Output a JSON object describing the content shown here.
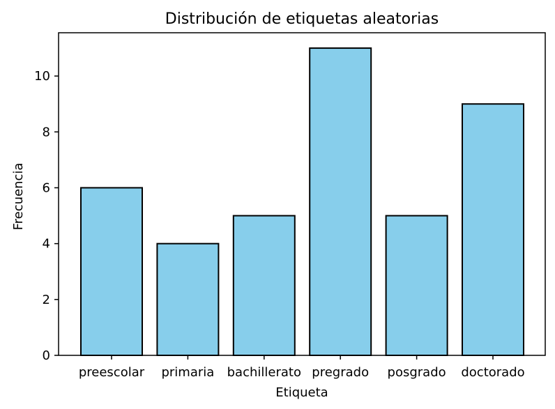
{
  "chart_data": {
    "type": "bar",
    "title": "Distribución de etiquetas aleatorias",
    "xlabel": "Etiqueta",
    "ylabel": "Frecuencia",
    "categories": [
      "preescolar",
      "primaria",
      "bachillerato",
      "pregrado",
      "posgrado",
      "doctorado"
    ],
    "values": [
      6,
      4,
      5,
      11,
      5,
      9
    ],
    "ylim": [
      0,
      11.55
    ],
    "yticks": [
      0,
      2,
      4,
      6,
      8,
      10
    ],
    "grid": false,
    "bar_color": "#87ceeb",
    "edge_color": "#000000"
  }
}
